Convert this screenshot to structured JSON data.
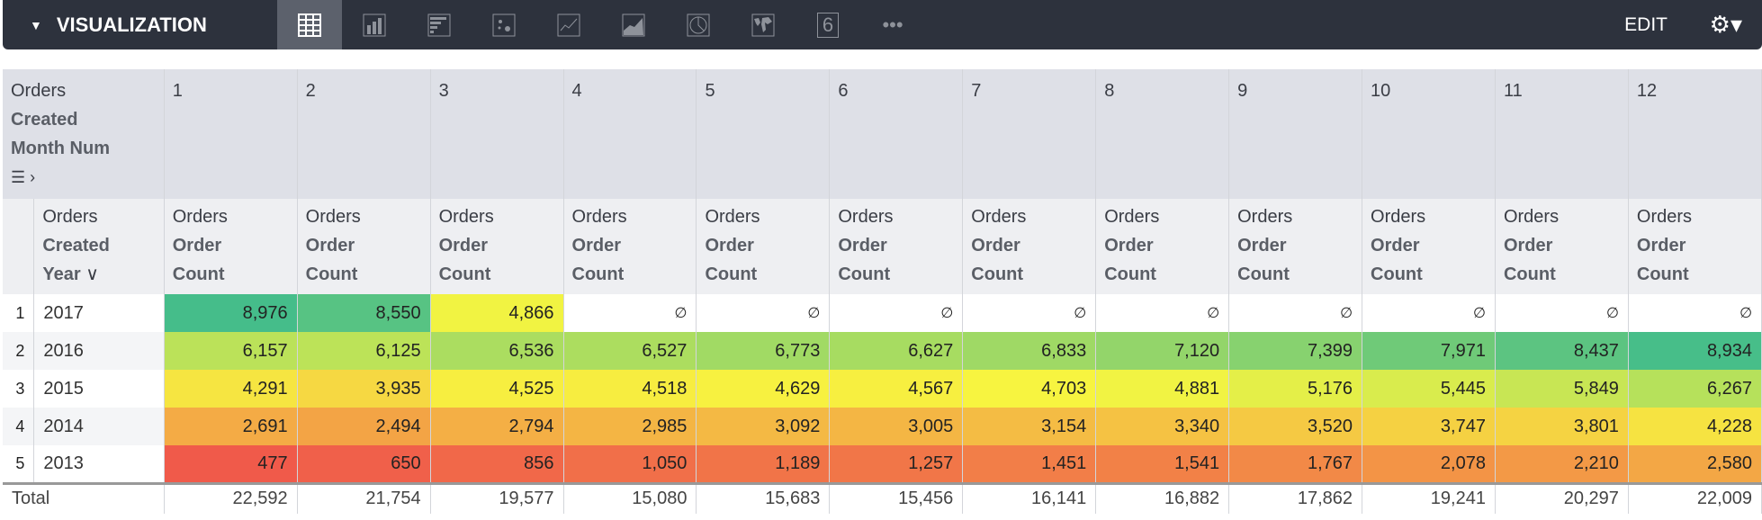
{
  "toolbar": {
    "title": "VISUALIZATION",
    "edit": "EDIT",
    "icons": [
      "table-icon",
      "bar-chart-icon",
      "horizontal-bar-icon",
      "scatter-icon",
      "line-chart-icon",
      "area-chart-icon",
      "pie-chart-icon",
      "map-icon",
      "single-value-icon",
      "more-icon"
    ],
    "single_value_glyph": "6",
    "more_glyph": "•••"
  },
  "pivot_header": {
    "line1": "Orders",
    "line2": "Created",
    "line3": "Month Num"
  },
  "row_header": {
    "line1": "Orders",
    "line2": "Created",
    "line3": "Year"
  },
  "measure": {
    "line1": "Orders",
    "line2": "Order",
    "line3": "Count"
  },
  "columns": [
    "1",
    "2",
    "3",
    "4",
    "5",
    "6",
    "7",
    "8",
    "9",
    "10",
    "11",
    "12"
  ],
  "null_glyph": "∅",
  "rows": [
    {
      "n": "1",
      "year": "2017",
      "values": [
        "8,976",
        "8,550",
        "4,866",
        null,
        null,
        null,
        null,
        null,
        null,
        null,
        null,
        null
      ]
    },
    {
      "n": "2",
      "year": "2016",
      "values": [
        "6,157",
        "6,125",
        "6,536",
        "6,527",
        "6,773",
        "6,627",
        "6,833",
        "7,120",
        "7,399",
        "7,971",
        "8,437",
        "8,934"
      ]
    },
    {
      "n": "3",
      "year": "2015",
      "values": [
        "4,291",
        "3,935",
        "4,525",
        "4,518",
        "4,629",
        "4,567",
        "4,703",
        "4,881",
        "5,176",
        "5,445",
        "5,849",
        "6,267"
      ]
    },
    {
      "n": "4",
      "year": "2014",
      "values": [
        "2,691",
        "2,494",
        "2,794",
        "2,985",
        "3,092",
        "3,005",
        "3,154",
        "3,340",
        "3,520",
        "3,747",
        "3,801",
        "4,228"
      ]
    },
    {
      "n": "5",
      "year": "2013",
      "values": [
        "477",
        "650",
        "856",
        "1,050",
        "1,189",
        "1,257",
        "1,451",
        "1,541",
        "1,767",
        "2,078",
        "2,210",
        "2,580"
      ]
    }
  ],
  "total": {
    "label": "Total",
    "values": [
      "22,592",
      "21,754",
      "19,577",
      "15,080",
      "15,683",
      "15,456",
      "16,141",
      "16,882",
      "17,862",
      "19,241",
      "20,297",
      "22,009"
    ]
  },
  "color_scale": {
    "low": "#f05a4a",
    "mid": "#f7f540",
    "high": "#45bd8a"
  }
}
